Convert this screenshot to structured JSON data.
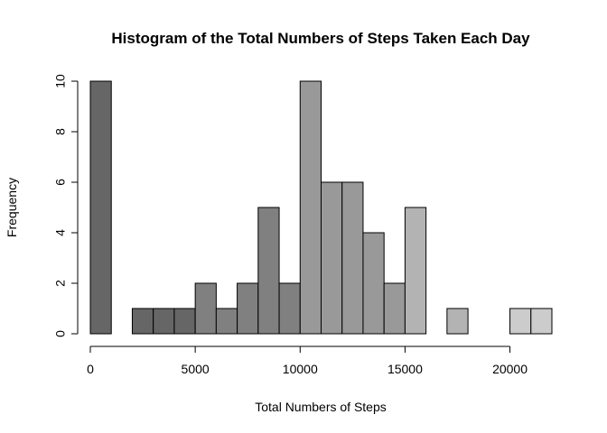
{
  "chart_data": {
    "type": "bar",
    "title": "Histogram of the Total Numbers of Steps Taken Each Day",
    "xlabel": "Total Numbers of Steps",
    "ylabel": "Frequency",
    "bin_width": 1000,
    "bins": [
      {
        "start": 0,
        "end": 1000,
        "count": 10,
        "color": "#666666"
      },
      {
        "start": 1000,
        "end": 2000,
        "count": 0,
        "color": "#666666"
      },
      {
        "start": 2000,
        "end": 3000,
        "count": 1,
        "color": "#666666"
      },
      {
        "start": 3000,
        "end": 4000,
        "count": 1,
        "color": "#666666"
      },
      {
        "start": 4000,
        "end": 5000,
        "count": 1,
        "color": "#666666"
      },
      {
        "start": 5000,
        "end": 6000,
        "count": 2,
        "color": "#808080"
      },
      {
        "start": 6000,
        "end": 7000,
        "count": 1,
        "color": "#808080"
      },
      {
        "start": 7000,
        "end": 8000,
        "count": 2,
        "color": "#808080"
      },
      {
        "start": 8000,
        "end": 9000,
        "count": 5,
        "color": "#808080"
      },
      {
        "start": 9000,
        "end": 10000,
        "count": 2,
        "color": "#808080"
      },
      {
        "start": 10000,
        "end": 11000,
        "count": 10,
        "color": "#999999"
      },
      {
        "start": 11000,
        "end": 12000,
        "count": 6,
        "color": "#999999"
      },
      {
        "start": 12000,
        "end": 13000,
        "count": 6,
        "color": "#999999"
      },
      {
        "start": 13000,
        "end": 14000,
        "count": 4,
        "color": "#999999"
      },
      {
        "start": 14000,
        "end": 15000,
        "count": 2,
        "color": "#999999"
      },
      {
        "start": 15000,
        "end": 16000,
        "count": 5,
        "color": "#b3b3b3"
      },
      {
        "start": 16000,
        "end": 17000,
        "count": 0,
        "color": "#b3b3b3"
      },
      {
        "start": 17000,
        "end": 18000,
        "count": 1,
        "color": "#b3b3b3"
      },
      {
        "start": 18000,
        "end": 19000,
        "count": 0,
        "color": "#b3b3b3"
      },
      {
        "start": 19000,
        "end": 20000,
        "count": 0,
        "color": "#b3b3b3"
      },
      {
        "start": 20000,
        "end": 21000,
        "count": 1,
        "color": "#cccccc"
      },
      {
        "start": 21000,
        "end": 22000,
        "count": 1,
        "color": "#cccccc"
      }
    ],
    "xlim": [
      0,
      22000
    ],
    "ylim": [
      0,
      10
    ],
    "x_ticks": [
      0,
      5000,
      10000,
      15000,
      20000
    ],
    "x_tick_labels": [
      "0",
      "5000",
      "10000",
      "15000",
      "20000"
    ],
    "y_ticks": [
      0,
      2,
      4,
      6,
      8,
      10
    ],
    "y_tick_labels": [
      "0",
      "2",
      "4",
      "6",
      "8",
      "10"
    ],
    "grid": false,
    "legend": "none"
  }
}
